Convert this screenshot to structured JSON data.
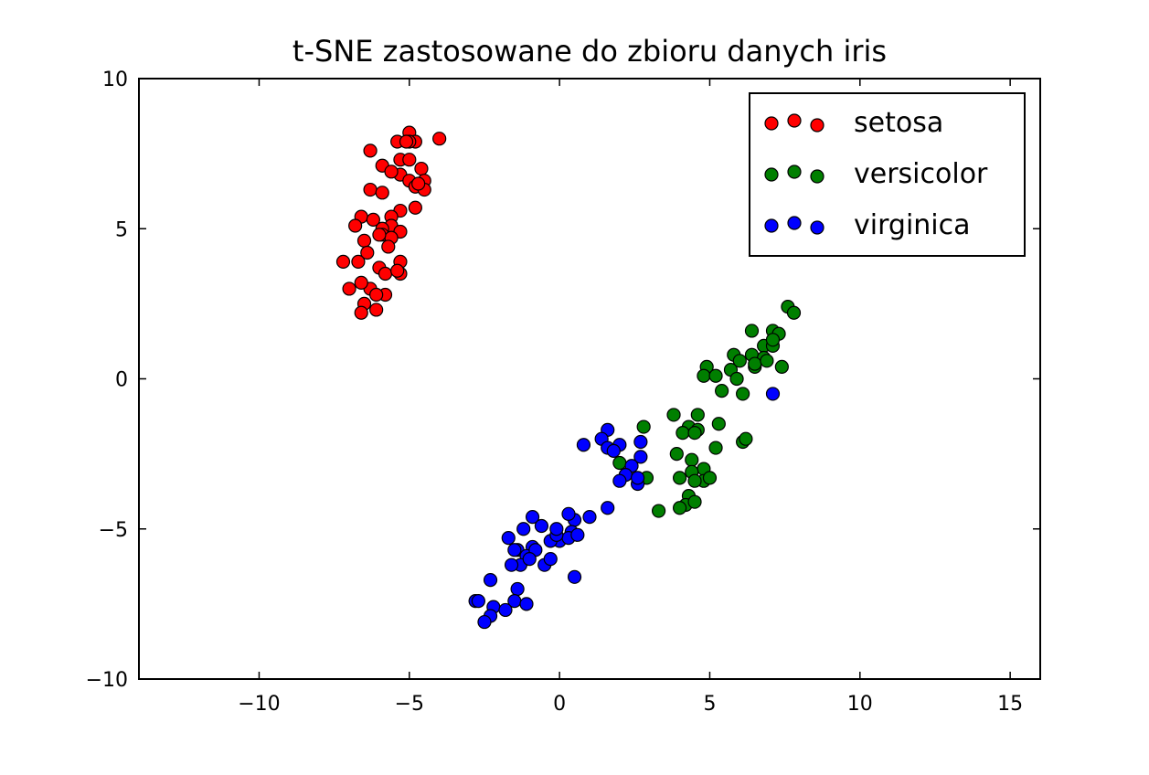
{
  "chart_data": {
    "type": "scatter",
    "title": "t-SNE zastosowane do zbioru danych iris",
    "xlabel": "",
    "ylabel": "",
    "xlim": [
      -14,
      16
    ],
    "ylim": [
      -10,
      10
    ],
    "xticks": [
      -10,
      -5,
      0,
      5,
      10,
      15
    ],
    "yticks": [
      -10,
      -5,
      0,
      5,
      10
    ],
    "xtick_labels": [
      "−10",
      "−5",
      "0",
      "5",
      "10",
      "15"
    ],
    "ytick_labels": [
      "−10",
      "−5",
      "0",
      "5",
      "10"
    ],
    "grid": false,
    "legend": {
      "position": "top-right",
      "entries": [
        "setosa",
        "versicolor",
        "virginica"
      ]
    },
    "series": [
      {
        "name": "setosa",
        "color": "#ff0000",
        "points": [
          [
            -5.0,
            8.2
          ],
          [
            -4.8,
            7.9
          ],
          [
            -4.0,
            8.0
          ],
          [
            -5.4,
            7.9
          ],
          [
            -5.0,
            7.9
          ],
          [
            -6.3,
            7.6
          ],
          [
            -5.3,
            7.3
          ],
          [
            -5.0,
            7.3
          ],
          [
            -5.9,
            7.1
          ],
          [
            -4.6,
            7.0
          ],
          [
            -5.3,
            6.8
          ],
          [
            -5.0,
            6.6
          ],
          [
            -4.5,
            6.6
          ],
          [
            -4.8,
            6.4
          ],
          [
            -4.5,
            6.3
          ],
          [
            -6.3,
            6.3
          ],
          [
            -5.9,
            6.2
          ],
          [
            -4.8,
            5.7
          ],
          [
            -5.3,
            5.6
          ],
          [
            -5.6,
            5.4
          ],
          [
            -6.6,
            5.4
          ],
          [
            -6.2,
            5.3
          ],
          [
            -5.6,
            5.1
          ],
          [
            -5.9,
            5.0
          ],
          [
            -6.8,
            5.1
          ],
          [
            -5.3,
            4.9
          ],
          [
            -5.9,
            4.8
          ],
          [
            -5.6,
            4.7
          ],
          [
            -6.5,
            4.6
          ],
          [
            -5.7,
            4.4
          ],
          [
            -6.4,
            4.2
          ],
          [
            -6.7,
            3.9
          ],
          [
            -7.2,
            3.9
          ],
          [
            -5.3,
            3.9
          ],
          [
            -6.0,
            3.7
          ],
          [
            -5.3,
            3.5
          ],
          [
            -5.8,
            3.5
          ],
          [
            -6.3,
            3.0
          ],
          [
            -7.0,
            3.0
          ],
          [
            -5.8,
            2.8
          ],
          [
            -6.6,
            3.2
          ],
          [
            -6.1,
            2.3
          ],
          [
            -6.5,
            2.5
          ],
          [
            -6.6,
            2.2
          ],
          [
            -5.1,
            7.9
          ],
          [
            -4.7,
            6.5
          ],
          [
            -5.6,
            6.9
          ],
          [
            -6.1,
            2.8
          ],
          [
            -5.4,
            3.6
          ],
          [
            -6.0,
            4.8
          ]
        ]
      },
      {
        "name": "versicolor",
        "color": "#007f00",
        "points": [
          [
            7.6,
            2.4
          ],
          [
            7.8,
            2.2
          ],
          [
            6.4,
            1.6
          ],
          [
            7.1,
            1.6
          ],
          [
            7.3,
            1.5
          ],
          [
            6.8,
            1.1
          ],
          [
            7.1,
            1.1
          ],
          [
            5.8,
            0.8
          ],
          [
            6.4,
            0.8
          ],
          [
            6.8,
            0.7
          ],
          [
            6.0,
            0.6
          ],
          [
            4.9,
            0.4
          ],
          [
            5.7,
            0.3
          ],
          [
            6.5,
            0.4
          ],
          [
            7.4,
            0.4
          ],
          [
            4.8,
            0.1
          ],
          [
            5.2,
            0.1
          ],
          [
            5.9,
            0.0
          ],
          [
            6.5,
            0.5
          ],
          [
            5.4,
            -0.4
          ],
          [
            6.1,
            -0.5
          ],
          [
            3.8,
            -1.2
          ],
          [
            4.6,
            -1.2
          ],
          [
            4.3,
            -1.6
          ],
          [
            4.6,
            -1.7
          ],
          [
            4.1,
            -1.8
          ],
          [
            5.3,
            -1.5
          ],
          [
            6.1,
            -2.1
          ],
          [
            6.2,
            -2.0
          ],
          [
            2.8,
            -1.6
          ],
          [
            3.9,
            -2.5
          ],
          [
            5.2,
            -2.3
          ],
          [
            4.4,
            -2.7
          ],
          [
            4.8,
            -3.0
          ],
          [
            2.2,
            -3.2
          ],
          [
            2.9,
            -3.3
          ],
          [
            2.0,
            -2.8
          ],
          [
            4.4,
            -3.1
          ],
          [
            4.8,
            -3.4
          ],
          [
            4.0,
            -3.3
          ],
          [
            4.5,
            -3.4
          ],
          [
            4.3,
            -3.9
          ],
          [
            4.2,
            -4.2
          ],
          [
            4.5,
            -4.1
          ],
          [
            4.0,
            -4.3
          ],
          [
            3.3,
            -4.4
          ],
          [
            7.1,
            1.3
          ],
          [
            6.9,
            0.6
          ],
          [
            4.5,
            -1.8
          ],
          [
            5.0,
            -3.3
          ]
        ]
      },
      {
        "name": "virginica",
        "color": "#0000ff",
        "points": [
          [
            7.1,
            -0.5
          ],
          [
            1.6,
            -1.7
          ],
          [
            2.7,
            -2.1
          ],
          [
            1.4,
            -2.0
          ],
          [
            0.8,
            -2.2
          ],
          [
            1.6,
            -2.3
          ],
          [
            2.0,
            -2.2
          ],
          [
            2.7,
            -2.6
          ],
          [
            2.4,
            -2.9
          ],
          [
            2.2,
            -3.2
          ],
          [
            2.6,
            -3.5
          ],
          [
            2.0,
            -3.4
          ],
          [
            1.6,
            -4.3
          ],
          [
            1.0,
            -4.6
          ],
          [
            0.5,
            -4.7
          ],
          [
            0.3,
            -4.5
          ],
          [
            -0.9,
            -4.6
          ],
          [
            -0.6,
            -4.9
          ],
          [
            -1.2,
            -5.0
          ],
          [
            -1.7,
            -5.3
          ],
          [
            0.4,
            -5.1
          ],
          [
            0.0,
            -5.4
          ],
          [
            -0.3,
            -5.4
          ],
          [
            0.3,
            -5.3
          ],
          [
            -0.9,
            -5.6
          ],
          [
            -1.4,
            -5.7
          ],
          [
            -1.1,
            -5.9
          ],
          [
            -0.5,
            -6.2
          ],
          [
            -0.3,
            -6.0
          ],
          [
            -1.3,
            -6.2
          ],
          [
            -1.6,
            -6.2
          ],
          [
            0.5,
            -6.6
          ],
          [
            -2.3,
            -6.7
          ],
          [
            -1.4,
            -7.0
          ],
          [
            -1.5,
            -7.4
          ],
          [
            -1.1,
            -7.5
          ],
          [
            -2.8,
            -7.4
          ],
          [
            -2.7,
            -7.4
          ],
          [
            -2.2,
            -7.6
          ],
          [
            -1.8,
            -7.7
          ],
          [
            -2.3,
            -7.9
          ],
          [
            -2.5,
            -8.1
          ],
          [
            -0.8,
            -5.7
          ],
          [
            -0.1,
            -5.2
          ],
          [
            0.6,
            -5.2
          ],
          [
            1.8,
            -2.4
          ],
          [
            2.6,
            -3.3
          ],
          [
            -1.0,
            -6.0
          ],
          [
            -0.1,
            -5.0
          ],
          [
            -1.5,
            -5.7
          ]
        ]
      }
    ]
  }
}
